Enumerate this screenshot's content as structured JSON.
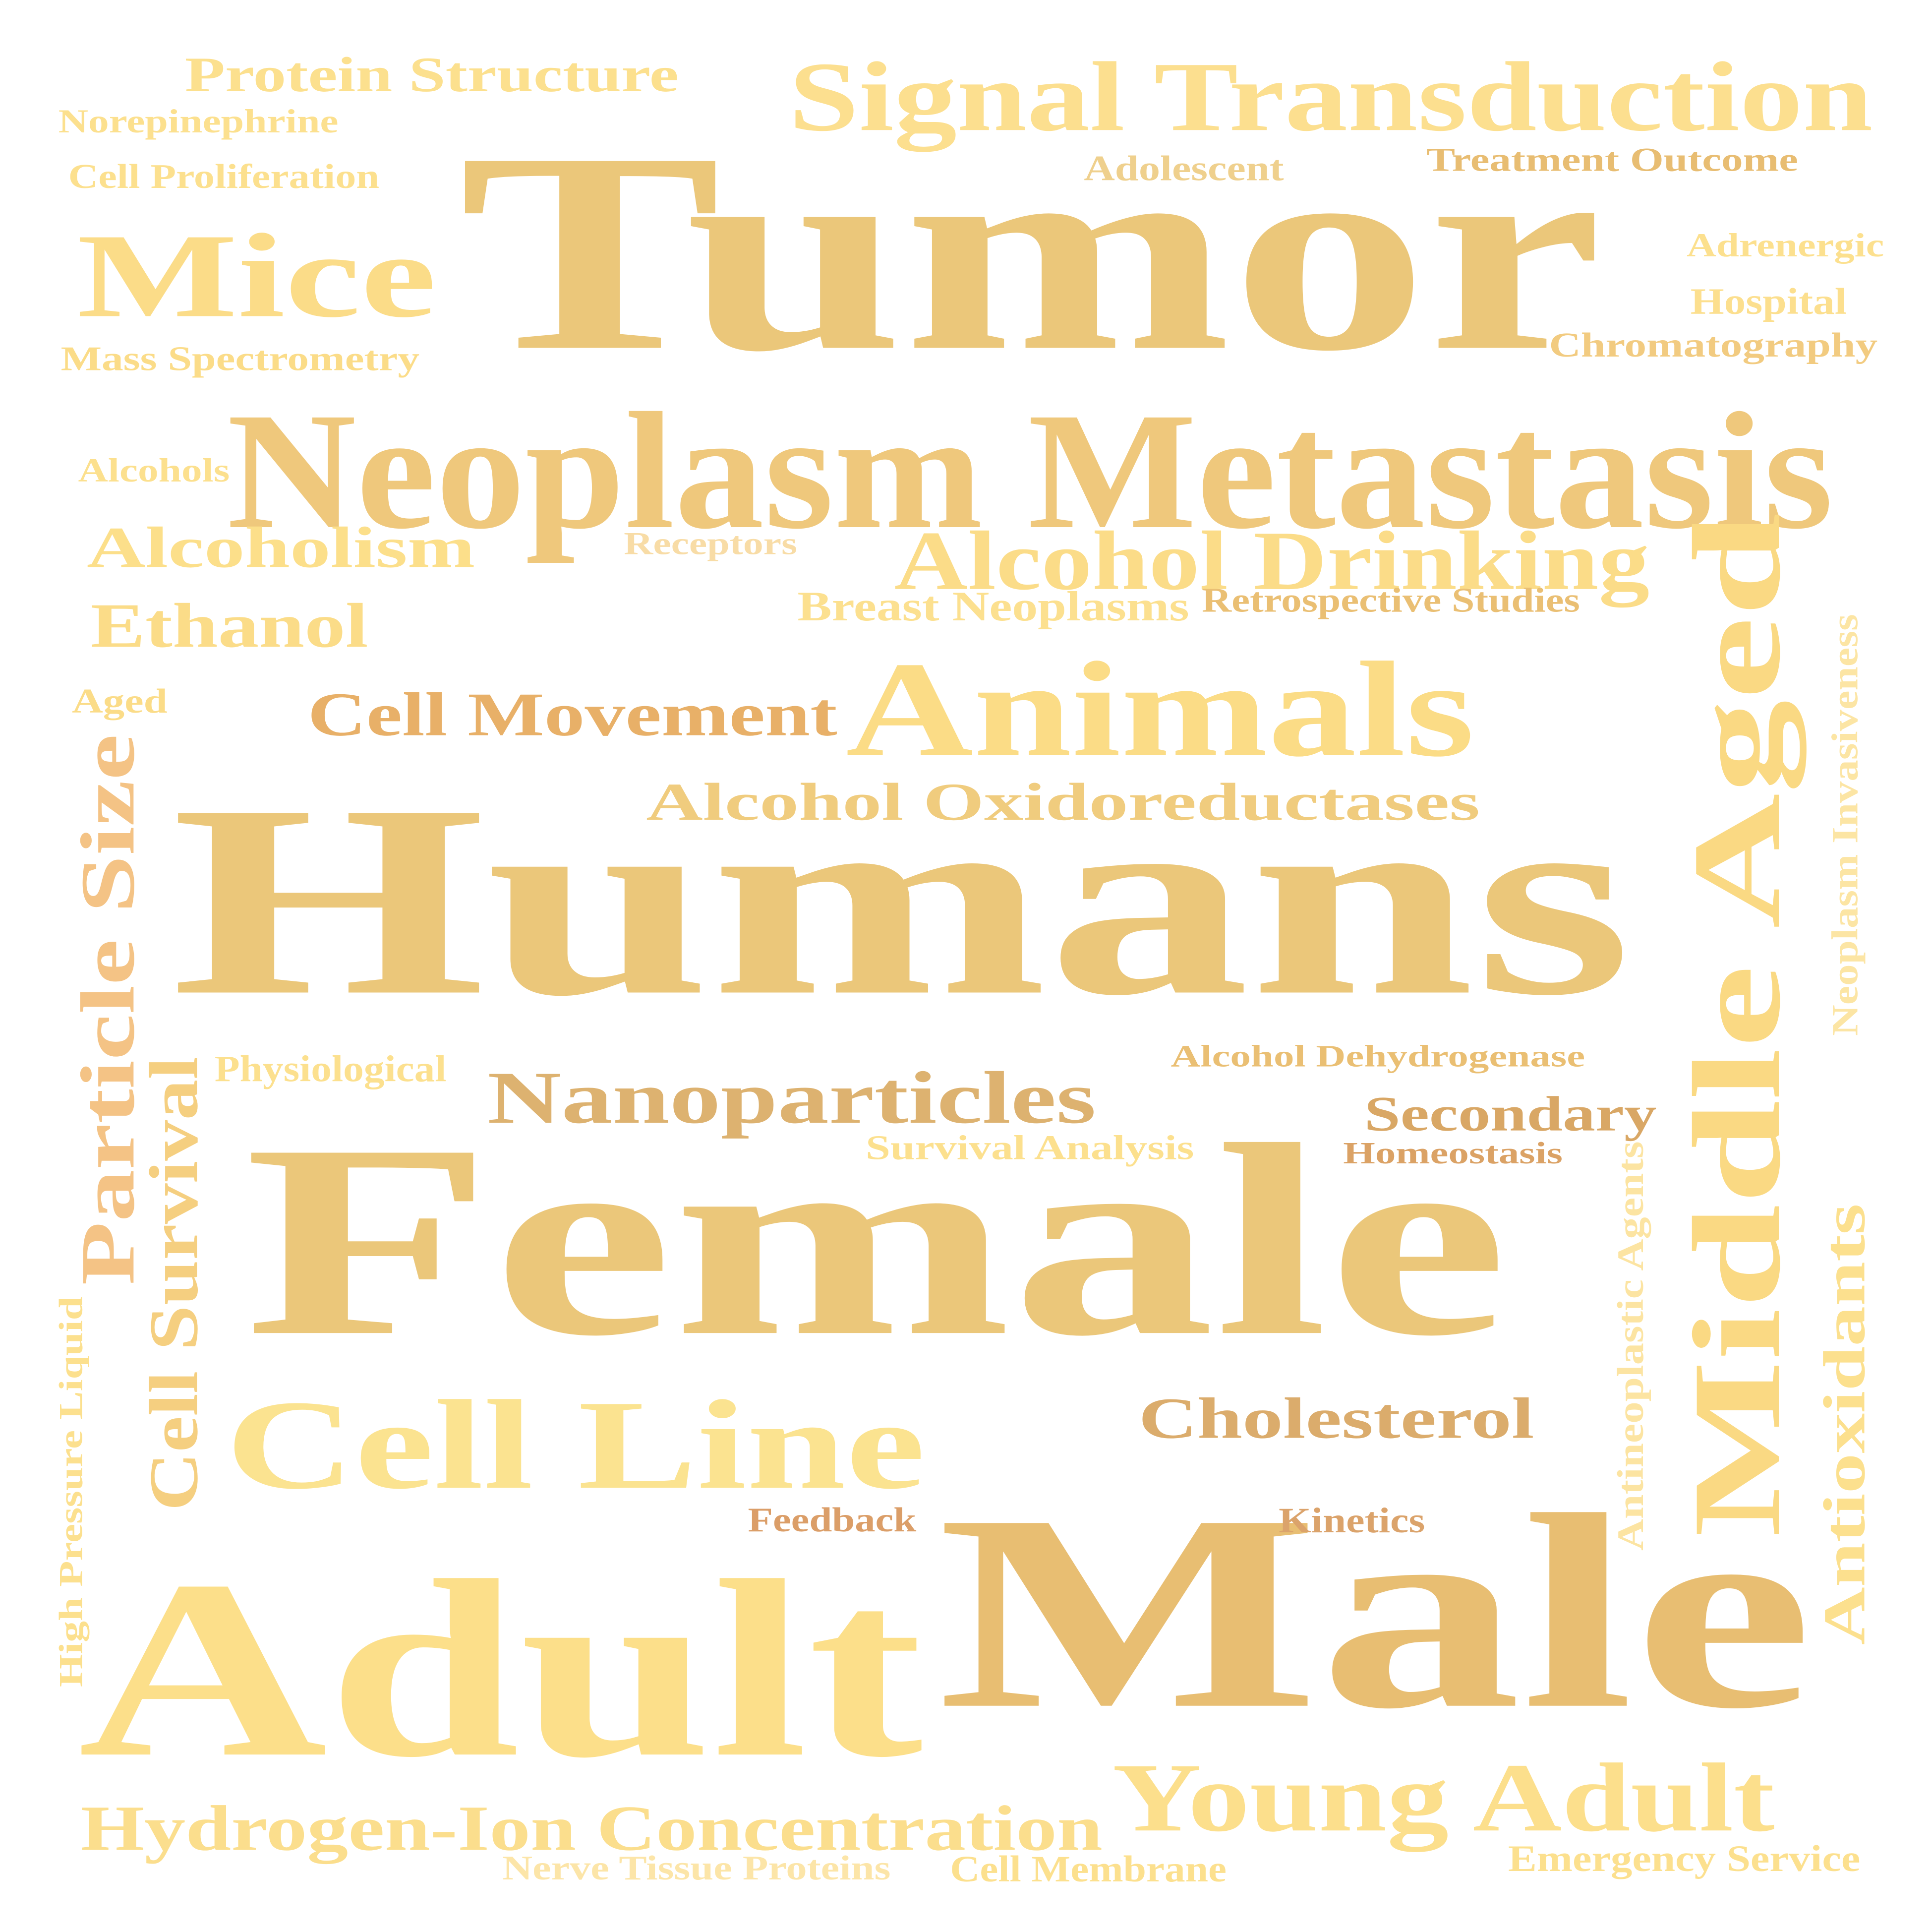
{
  "words": [
    {
      "text": "Tumor",
      "color": "#EBC77A",
      "vertical": false
    },
    {
      "text": "Humans",
      "color": "#EBC77A",
      "vertical": false
    },
    {
      "text": "Female",
      "color": "#EBC77A",
      "vertical": false
    },
    {
      "text": "Male",
      "color": "#E8BE72",
      "vertical": false
    },
    {
      "text": "Adult",
      "color": "#FCDF8A",
      "vertical": false
    },
    {
      "text": "Neoplasm Metastasis",
      "color": "#EFC87C",
      "vertical": false
    },
    {
      "text": "Signal Transduction",
      "color": "#FCDF8F",
      "vertical": false
    },
    {
      "text": "Mice",
      "color": "#FBDC88",
      "vertical": false
    },
    {
      "text": "Animals",
      "color": "#FBDC86",
      "vertical": false
    },
    {
      "text": "Cell Line",
      "color": "#FBE390",
      "vertical": false
    },
    {
      "text": "Young Adult",
      "color": "#FCDF8C",
      "vertical": false
    },
    {
      "text": "Middle Aged",
      "color": "#FAD983",
      "vertical": true
    },
    {
      "text": "Alcohol Drinking",
      "color": "#FBDC88",
      "vertical": false
    },
    {
      "text": "Nanoparticles",
      "color": "#DDB270",
      "vertical": false
    },
    {
      "text": "Hydrogen-Ion Concentration",
      "color": "#FBDE8D",
      "vertical": false
    },
    {
      "text": "Alcohol Oxidoreductases",
      "color": "#F0CC7E",
      "vertical": false
    },
    {
      "text": "Cell Movement",
      "color": "#E8B068",
      "vertical": false
    },
    {
      "text": "Protein Structure",
      "color": "#FCE08E",
      "vertical": false
    },
    {
      "text": "Alcoholism",
      "color": "#FCDF8A",
      "vertical": false
    },
    {
      "text": "Ethanol",
      "color": "#FBDC88",
      "vertical": false
    },
    {
      "text": "Cholesterol",
      "color": "#DBAC6C",
      "vertical": false
    },
    {
      "text": "Particle Size",
      "color": "#F4C385",
      "vertical": true
    },
    {
      "text": "Cell Survival",
      "color": "#F5CF80",
      "vertical": true
    },
    {
      "text": "Antioxidants",
      "color": "#FCE08E",
      "vertical": true
    },
    {
      "text": "Secondary",
      "color": "#D9A765",
      "vertical": false
    },
    {
      "text": "Breast Neoplasms",
      "color": "#FCE08F",
      "vertical": false
    },
    {
      "text": "Retrospective Studies",
      "color": "#EABF73",
      "vertical": false
    },
    {
      "text": "Mass Spectrometry",
      "color": "#FBDC88",
      "vertical": false
    },
    {
      "text": "Cell Proliferation",
      "color": "#FCE08E",
      "vertical": false
    },
    {
      "text": "Norepinephrine",
      "color": "#FCE08E",
      "vertical": false
    },
    {
      "text": "Adolescent",
      "color": "#EFD08D",
      "vertical": false
    },
    {
      "text": "Treatment Outcome",
      "color": "#E8BD72",
      "vertical": false
    },
    {
      "text": "Adrenergic",
      "color": "#FCE08E",
      "vertical": false
    },
    {
      "text": "Hospital",
      "color": "#FCDF8E",
      "vertical": false
    },
    {
      "text": "Chromatography",
      "color": "#F2CB80",
      "vertical": false
    },
    {
      "text": "Alcohols",
      "color": "#FCE08E",
      "vertical": false
    },
    {
      "text": "Receptors",
      "color": "#F8DCA6",
      "vertical": false
    },
    {
      "text": "Aged",
      "color": "#FBDC88",
      "vertical": false
    },
    {
      "text": "Physiological",
      "color": "#FCE08E",
      "vertical": false
    },
    {
      "text": "Alcohol Dehydrogenase",
      "color": "#EABF73",
      "vertical": false
    },
    {
      "text": "Survival Analysis",
      "color": "#FCE08E",
      "vertical": false
    },
    {
      "text": "Homeostasis",
      "color": "#DBA265",
      "vertical": false
    },
    {
      "text": "Neoplasm Invasiveness",
      "color": "#FCE5A4",
      "vertical": true
    },
    {
      "text": "Antineoplastic Agents",
      "color": "#FCE4A2",
      "vertical": true
    },
    {
      "text": "High Pressure Liquid",
      "color": "#FCE08E",
      "vertical": true
    },
    {
      "text": "Feedback",
      "color": "#DB9E68",
      "vertical": false
    },
    {
      "text": "Kinetics",
      "color": "#DBA36B",
      "vertical": false
    },
    {
      "text": "Nerve Tissue Proteins",
      "color": "#FCE5A8",
      "vertical": false
    },
    {
      "text": "Cell Membrane",
      "color": "#FCE08E",
      "vertical": false
    },
    {
      "text": "Emergency Service",
      "color": "#FCE08E",
      "vertical": false
    }
  ]
}
